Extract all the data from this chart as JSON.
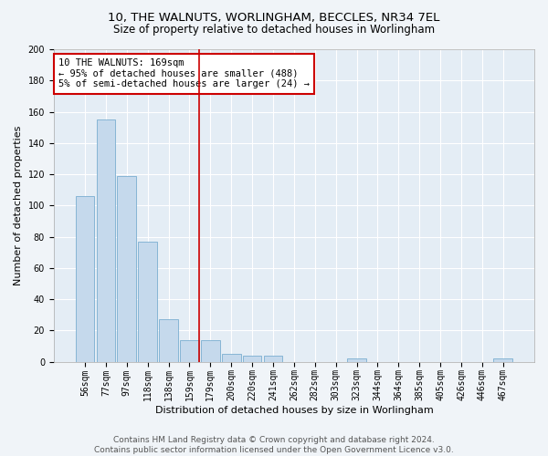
{
  "title": "10, THE WALNUTS, WORLINGHAM, BECCLES, NR34 7EL",
  "subtitle": "Size of property relative to detached houses in Worlingham",
  "xlabel": "Distribution of detached houses by size in Worlingham",
  "ylabel": "Number of detached properties",
  "footer_line1": "Contains HM Land Registry data © Crown copyright and database right 2024.",
  "footer_line2": "Contains public sector information licensed under the Open Government Licence v3.0.",
  "bar_labels": [
    "56sqm",
    "77sqm",
    "97sqm",
    "118sqm",
    "138sqm",
    "159sqm",
    "179sqm",
    "200sqm",
    "220sqm",
    "241sqm",
    "262sqm",
    "282sqm",
    "303sqm",
    "323sqm",
    "344sqm",
    "364sqm",
    "385sqm",
    "405sqm",
    "426sqm",
    "446sqm",
    "467sqm"
  ],
  "bar_values": [
    106,
    155,
    119,
    77,
    27,
    14,
    14,
    5,
    4,
    4,
    0,
    0,
    0,
    2,
    0,
    0,
    0,
    0,
    0,
    0,
    2
  ],
  "bar_color": "#c5d9ec",
  "bar_edge_color": "#7aaed0",
  "vline_color": "#cc0000",
  "vline_x": 5.48,
  "annotation_text": "10 THE WALNUTS: 169sqm\n← 95% of detached houses are smaller (488)\n5% of semi-detached houses are larger (24) →",
  "annotation_box_color": "#cc0000",
  "ylim": [
    0,
    200
  ],
  "yticks": [
    0,
    20,
    40,
    60,
    80,
    100,
    120,
    140,
    160,
    180,
    200
  ],
  "background_color": "#f0f4f8",
  "plot_background_color": "#e4edf5",
  "grid_color": "#ffffff",
  "title_fontsize": 9.5,
  "subtitle_fontsize": 8.5,
  "xlabel_fontsize": 8,
  "ylabel_fontsize": 8,
  "tick_fontsize": 7,
  "annotation_fontsize": 7.5,
  "footer_fontsize": 6.5
}
